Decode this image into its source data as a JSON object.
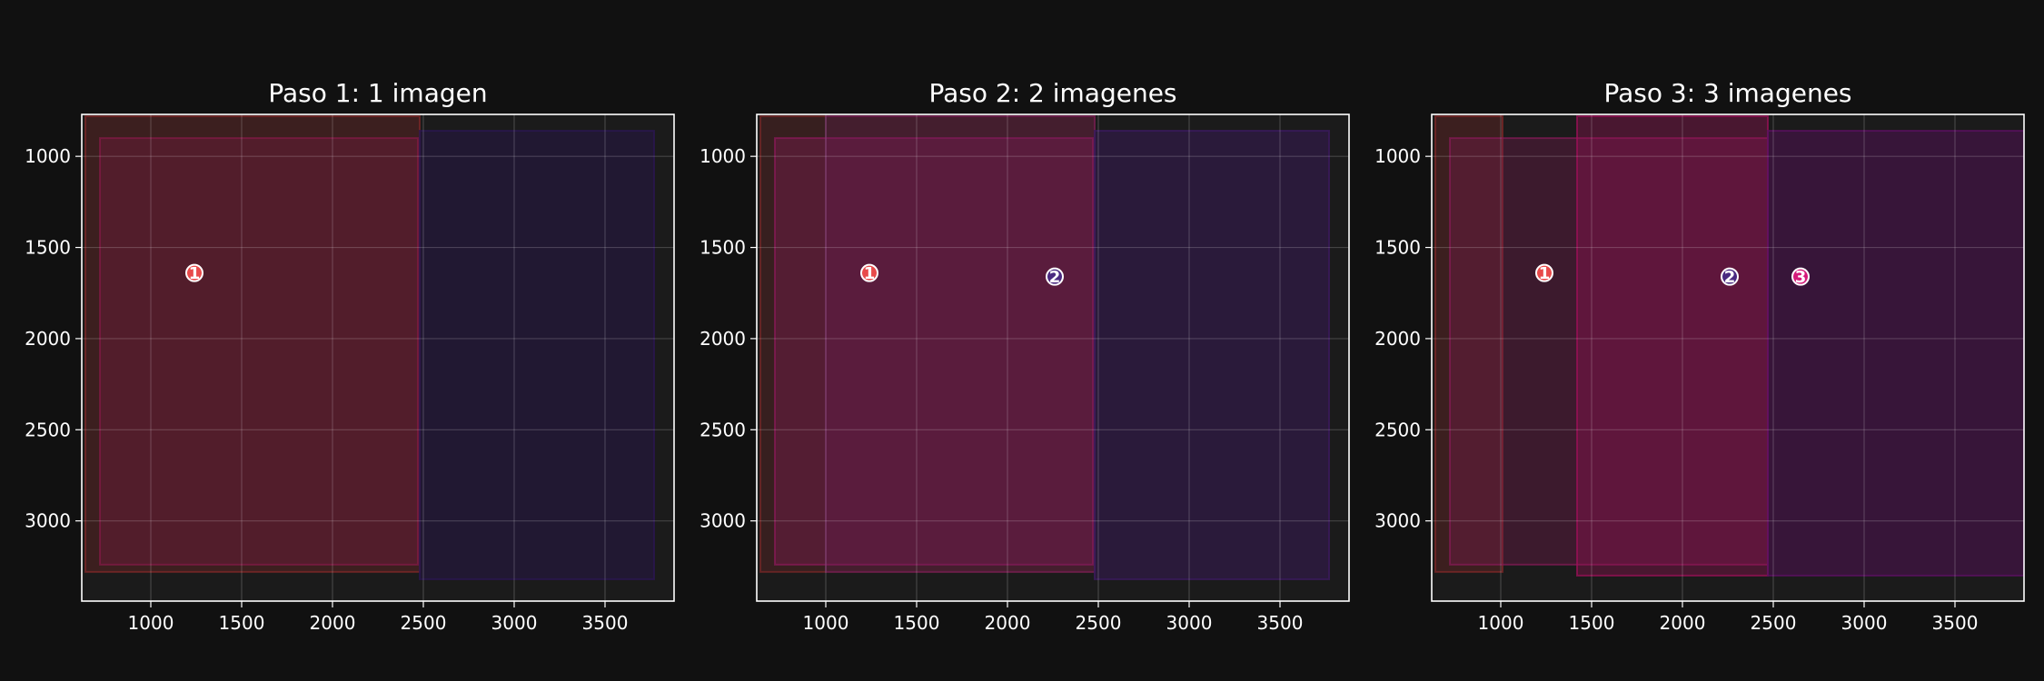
{
  "chart_data": [
    {
      "type": "scatter",
      "title": "Paso 1: 1 imagen",
      "xlim": [
        620,
        3880
      ],
      "ylim": [
        3440,
        770
      ],
      "xticks": [
        1000,
        1500,
        2000,
        2500,
        3000,
        3500
      ],
      "yticks": [
        1000,
        1500,
        2000,
        2500,
        3000
      ],
      "grid": true,
      "regions": [
        {
          "x0": 640,
          "x1": 2480,
          "y0": 780,
          "y1": 3280,
          "color": "#8b2a2a",
          "opacity": 0.3
        },
        {
          "x0": 720,
          "x1": 2470,
          "y0": 900,
          "y1": 3240,
          "color": "#8b1a4a",
          "opacity": 0.28
        },
        {
          "x0": 2480,
          "x1": 3770,
          "y0": 860,
          "y1": 3320,
          "color": "#2a1650",
          "opacity": 0.45
        }
      ],
      "points": [
        {
          "label": "1",
          "x": 1240,
          "y": 1640,
          "color": "#e84a4a"
        }
      ]
    },
    {
      "type": "scatter",
      "title": "Paso 2: 2 imagenes",
      "xlim": [
        620,
        3880
      ],
      "ylim": [
        3440,
        770
      ],
      "xticks": [
        1000,
        1500,
        2000,
        2500,
        3000,
        3500
      ],
      "yticks": [
        1000,
        1500,
        2000,
        2500,
        3000
      ],
      "grid": true,
      "regions": [
        {
          "x0": 640,
          "x1": 2480,
          "y0": 780,
          "y1": 3280,
          "color": "#8b2a2a",
          "opacity": 0.25
        },
        {
          "x0": 720,
          "x1": 2470,
          "y0": 900,
          "y1": 3240,
          "color": "#8b1a5a",
          "opacity": 0.35
        },
        {
          "x0": 1000,
          "x1": 2480,
          "y0": 780,
          "y1": 3280,
          "color": "#6a1a5a",
          "opacity": 0.25
        },
        {
          "x0": 2480,
          "x1": 3770,
          "y0": 860,
          "y1": 3320,
          "color": "#3a1a5a",
          "opacity": 0.5
        }
      ],
      "points": [
        {
          "label": "1",
          "x": 1240,
          "y": 1640,
          "color": "#e84a4a"
        },
        {
          "label": "2",
          "x": 2260,
          "y": 1660,
          "color": "#4a2a80"
        }
      ]
    },
    {
      "type": "scatter",
      "title": "Paso 3: 3 imagenes",
      "xlim": [
        620,
        3880
      ],
      "ylim": [
        3440,
        770
      ],
      "xticks": [
        1000,
        1500,
        2000,
        2500,
        3000,
        3500
      ],
      "yticks": [
        1000,
        1500,
        2000,
        2500,
        3000
      ],
      "grid": true,
      "regions": [
        {
          "x0": 640,
          "x1": 1010,
          "y0": 780,
          "y1": 3280,
          "color": "#8b2a2a",
          "opacity": 0.3
        },
        {
          "x0": 720,
          "x1": 2470,
          "y0": 900,
          "y1": 3240,
          "color": "#8b1a5a",
          "opacity": 0.3
        },
        {
          "x0": 1420,
          "x1": 2470,
          "y0": 780,
          "y1": 3300,
          "color": "#a0105a",
          "opacity": 0.35
        },
        {
          "x0": 2470,
          "x1": 3880,
          "y0": 860,
          "y1": 3300,
          "color": "#5a1060",
          "opacity": 0.45
        }
      ],
      "points": [
        {
          "label": "1",
          "x": 1240,
          "y": 1640,
          "color": "#e84a4a"
        },
        {
          "label": "2",
          "x": 2260,
          "y": 1660,
          "color": "#4a2a80"
        },
        {
          "label": "3",
          "x": 2650,
          "y": 1660,
          "color": "#d41a7a"
        }
      ]
    }
  ]
}
